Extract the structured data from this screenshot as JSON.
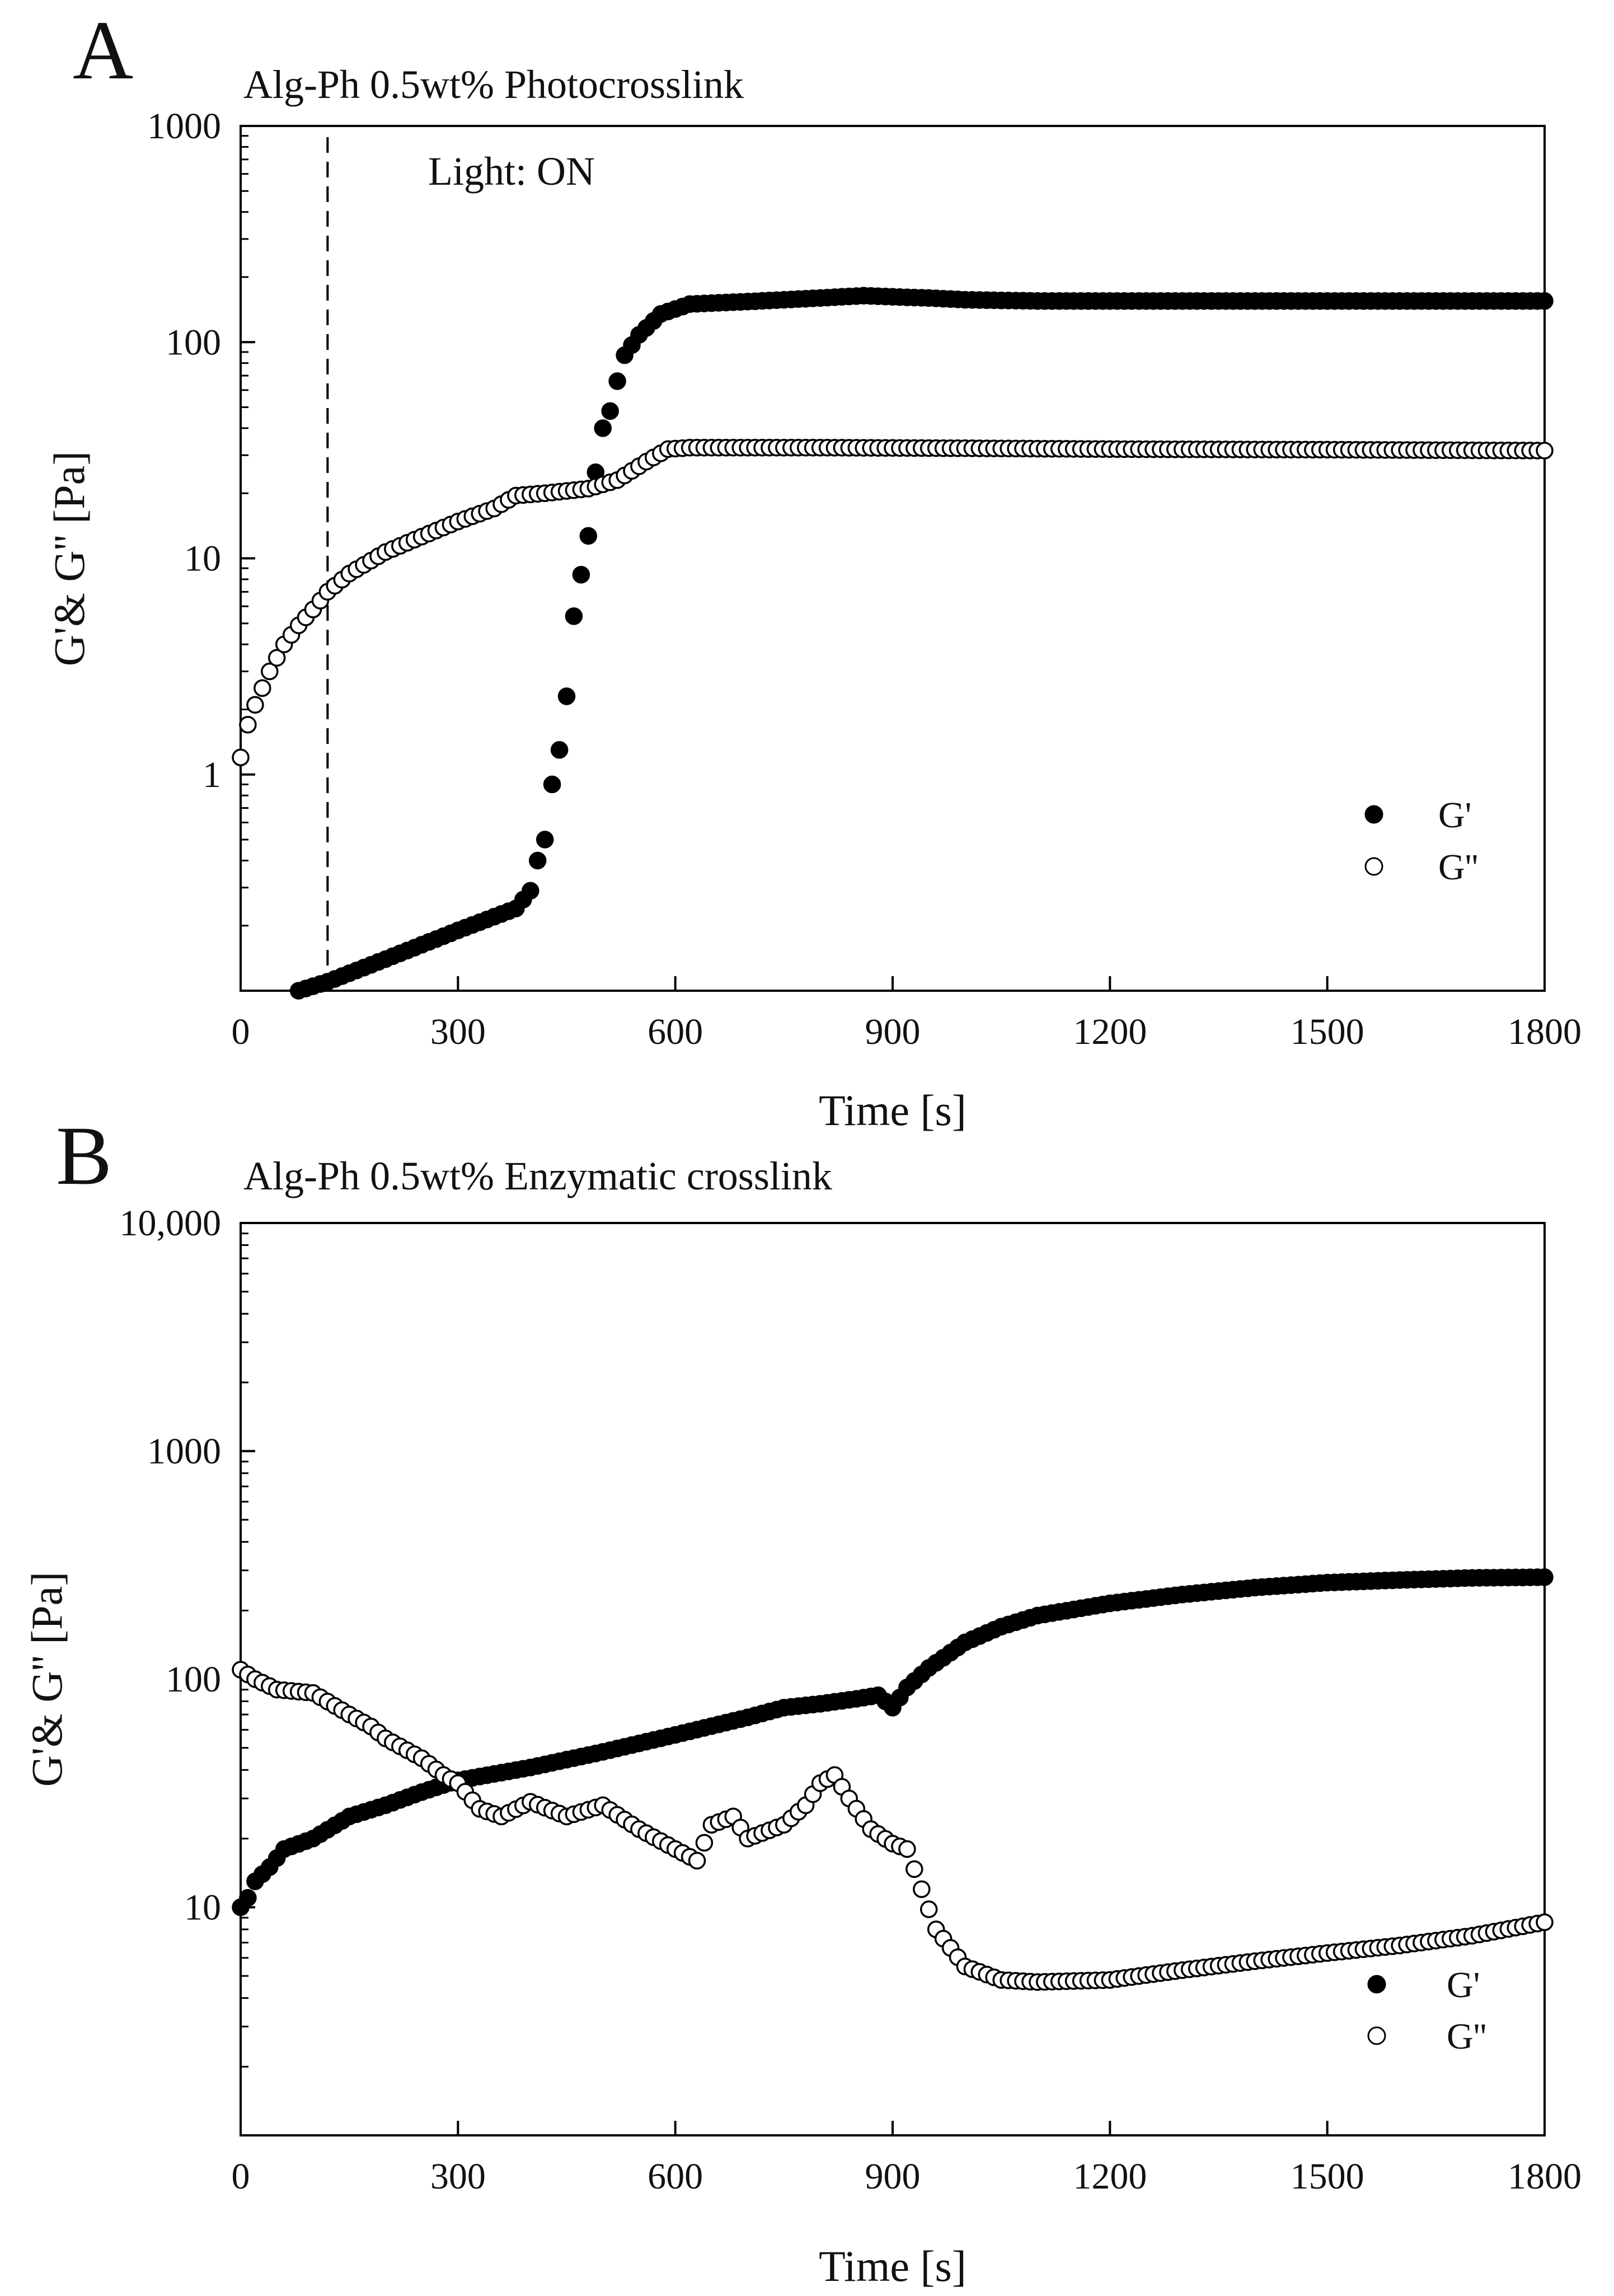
{
  "chart_data": [
    {
      "panel": "A",
      "type": "scatter",
      "title": "Alg-Ph 0.5wt% Photocrosslink",
      "xlabel": "Time [s]",
      "ylabel": "G'& G'' [Pa]",
      "xlim": [
        0,
        1800
      ],
      "ylim": [
        0.1,
        1000
      ],
      "yscale": "log",
      "x_ticks": [
        0,
        300,
        600,
        900,
        1200,
        1500,
        1800
      ],
      "x_tick_labels": [
        "0",
        "300",
        "600",
        "900",
        "1200",
        "1500",
        "1800"
      ],
      "y_ticks": [
        1,
        10,
        100,
        1000
      ],
      "y_tick_labels": [
        "1",
        "10",
        "100",
        "1000"
      ],
      "annotation": {
        "text": "Light: ON",
        "x": 120
      },
      "legend": [
        {
          "label": "G'",
          "marker": "filled"
        },
        {
          "label": "G''",
          "marker": "open"
        }
      ],
      "series": [
        {
          "name": "G'",
          "marker": "filled",
          "color": "#000000",
          "points": [
            [
              80,
              0.1
            ],
            [
              120,
              0.11
            ],
            [
              200,
              0.14
            ],
            [
              300,
              0.19
            ],
            [
              380,
              0.24
            ],
            [
              400,
              0.29
            ],
            [
              410,
              0.4
            ],
            [
              420,
              0.5
            ],
            [
              430,
              0.9
            ],
            [
              440,
              1.3
            ],
            [
              450,
              2.3
            ],
            [
              460,
              5.4
            ],
            [
              470,
              8.4
            ],
            [
              480,
              12.7
            ],
            [
              490,
              25
            ],
            [
              500,
              40
            ],
            [
              510,
              48
            ],
            [
              520,
              66
            ],
            [
              530,
              87
            ],
            [
              550,
              108
            ],
            [
              580,
              135
            ],
            [
              620,
              150
            ],
            [
              700,
              154
            ],
            [
              800,
              160
            ],
            [
              860,
              164
            ],
            [
              900,
              162
            ],
            [
              950,
              160
            ],
            [
              1000,
              157
            ],
            [
              1100,
              155
            ],
            [
              1300,
              155
            ],
            [
              1500,
              155
            ],
            [
              1800,
              155
            ]
          ]
        },
        {
          "name": "G''",
          "marker": "open",
          "color": "#000000",
          "points": [
            [
              0,
              1.2
            ],
            [
              10,
              1.7
            ],
            [
              20,
              2.1
            ],
            [
              40,
              3.0
            ],
            [
              60,
              4.0
            ],
            [
              80,
              4.9
            ],
            [
              100,
              5.8
            ],
            [
              120,
              7.0
            ],
            [
              150,
              8.5
            ],
            [
              200,
              10.7
            ],
            [
              250,
              12.6
            ],
            [
              300,
              14.8
            ],
            [
              350,
              17.0
            ],
            [
              380,
              19.5
            ],
            [
              420,
              20.0
            ],
            [
              480,
              21.0
            ],
            [
              520,
              23.0
            ],
            [
              560,
              28.0
            ],
            [
              590,
              32.0
            ],
            [
              620,
              32.5
            ],
            [
              800,
              32.5
            ],
            [
              1000,
              32.3
            ],
            [
              1200,
              32.0
            ],
            [
              1500,
              31.8
            ],
            [
              1800,
              31.5
            ]
          ]
        }
      ]
    },
    {
      "panel": "B",
      "type": "scatter",
      "title": "Alg-Ph 0.5wt%  Enzymatic crosslink",
      "xlabel": "Time [s]",
      "ylabel": "G'& G'' [Pa]",
      "xlim": [
        0,
        1800
      ],
      "ylim": [
        1,
        10000
      ],
      "yscale": "log",
      "x_ticks": [
        0,
        300,
        600,
        900,
        1200,
        1500,
        1800
      ],
      "x_tick_labels": [
        "0",
        "300",
        "600",
        "900",
        "1200",
        "1500",
        "1800"
      ],
      "y_ticks": [
        10,
        100,
        1000,
        10000
      ],
      "y_tick_labels": [
        "10",
        "100",
        "1000",
        "10,000"
      ],
      "legend": [
        {
          "label": "G'",
          "marker": "filled"
        },
        {
          "label": "G''",
          "marker": "open"
        }
      ],
      "series": [
        {
          "name": "G'",
          "marker": "filled",
          "color": "#000000",
          "points": [
            [
              0,
              10
            ],
            [
              10,
              11
            ],
            [
              20,
              13
            ],
            [
              40,
              15
            ],
            [
              60,
              18
            ],
            [
              100,
              20
            ],
            [
              150,
              25
            ],
            [
              200,
              28
            ],
            [
              250,
              32
            ],
            [
              300,
              36
            ],
            [
              400,
              41
            ],
            [
              500,
              48
            ],
            [
              600,
              57
            ],
            [
              700,
              68
            ],
            [
              750,
              75
            ],
            [
              800,
              78
            ],
            [
              850,
              82
            ],
            [
              880,
              85
            ],
            [
              900,
              75
            ],
            [
              920,
              92
            ],
            [
              950,
              112
            ],
            [
              1000,
              145
            ],
            [
              1050,
              170
            ],
            [
              1100,
              190
            ],
            [
              1200,
              215
            ],
            [
              1300,
              235
            ],
            [
              1400,
              252
            ],
            [
              1500,
              265
            ],
            [
              1600,
              272
            ],
            [
              1700,
              278
            ],
            [
              1800,
              280
            ]
          ]
        },
        {
          "name": "G''",
          "marker": "open",
          "color": "#000000",
          "points": [
            [
              0,
              110
            ],
            [
              20,
              100
            ],
            [
              50,
              90
            ],
            [
              100,
              87
            ],
            [
              150,
              70
            ],
            [
              180,
              62
            ],
            [
              200,
              55
            ],
            [
              250,
              45
            ],
            [
              280,
              38
            ],
            [
              300,
              35
            ],
            [
              330,
              27
            ],
            [
              360,
              25
            ],
            [
              400,
              29
            ],
            [
              450,
              25
            ],
            [
              500,
              28
            ],
            [
              550,
              22
            ],
            [
              600,
              18
            ],
            [
              630,
              16
            ],
            [
              650,
              23
            ],
            [
              680,
              25
            ],
            [
              700,
              20
            ],
            [
              750,
              23
            ],
            [
              780,
              28
            ],
            [
              800,
              35
            ],
            [
              820,
              38
            ],
            [
              840,
              30
            ],
            [
              870,
              22
            ],
            [
              900,
              19
            ],
            [
              920,
              18
            ],
            [
              940,
              12
            ],
            [
              960,
              8
            ],
            [
              1000,
              5.5
            ],
            [
              1050,
              4.8
            ],
            [
              1100,
              4.7
            ],
            [
              1200,
              4.8
            ],
            [
              1300,
              5.3
            ],
            [
              1400,
              5.8
            ],
            [
              1500,
              6.3
            ],
            [
              1600,
              6.8
            ],
            [
              1700,
              7.5
            ],
            [
              1800,
              8.6
            ]
          ]
        }
      ]
    }
  ]
}
